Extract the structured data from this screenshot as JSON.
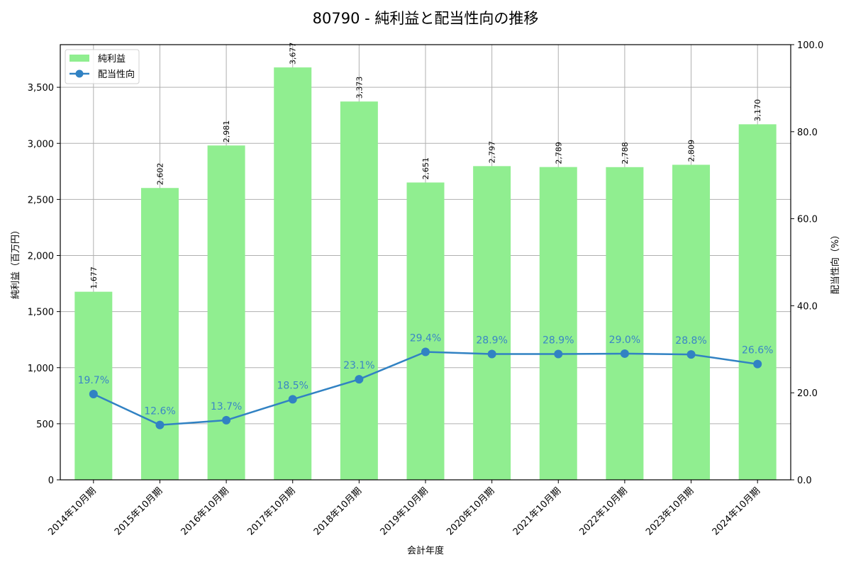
{
  "title": "80790 - 純利益と配当性向の推移",
  "colors": {
    "bar": "#90ee90",
    "line": "#3182c3",
    "grid": "#b0b0b0",
    "axis": "#000000"
  },
  "legend": {
    "bar_label": "純利益",
    "line_label": "配当性向"
  },
  "axes": {
    "xlabel": "会計年度",
    "ylabel_left": "純利益（百万円）",
    "ylabel_right": "配当性向（%）",
    "left_ticks": [
      "0",
      "500",
      "1,000",
      "1,500",
      "2,000",
      "2,500",
      "3,000",
      "3,500"
    ],
    "right_ticks": [
      "0.0",
      "20.0",
      "40.0",
      "60.0",
      "80.0",
      "100.0"
    ]
  },
  "chart_data": {
    "type": "bar+line",
    "title": "80790 - 純利益と配当性向の推移",
    "xlabel": "会計年度",
    "categories": [
      "2014年10月期",
      "2015年10月期",
      "2016年10月期",
      "2017年10月期",
      "2018年10月期",
      "2019年10月期",
      "2020年10月期",
      "2021年10月期",
      "2022年10月期",
      "2023年10月期",
      "2024年10月期"
    ],
    "series": [
      {
        "name": "純利益",
        "type": "bar",
        "axis": "left",
        "ylabel": "純利益（百万円）",
        "values": [
          1677,
          2602,
          2981,
          3677,
          3373,
          2651,
          2797,
          2789,
          2788,
          2809,
          3170
        ],
        "labels": [
          "1,677",
          "2,602",
          "2,981",
          "3,677",
          "3,373",
          "2,651",
          "2,797",
          "2,789",
          "2,788",
          "2,809",
          "3,170"
        ]
      },
      {
        "name": "配当性向",
        "type": "line",
        "axis": "right",
        "ylabel": "配当性向（%）",
        "values": [
          19.7,
          12.6,
          13.7,
          18.5,
          23.1,
          29.4,
          28.9,
          28.9,
          29.0,
          28.8,
          26.6
        ],
        "labels": [
          "19.7%",
          "12.6%",
          "13.7%",
          "18.5%",
          "23.1%",
          "29.4%",
          "28.9%",
          "28.9%",
          "29.0%",
          "28.8%",
          "26.6%"
        ]
      }
    ],
    "ylim_left": [
      0,
      3880
    ],
    "ylim_right": [
      0,
      100
    ],
    "grid": true,
    "legend_position": "upper left"
  }
}
